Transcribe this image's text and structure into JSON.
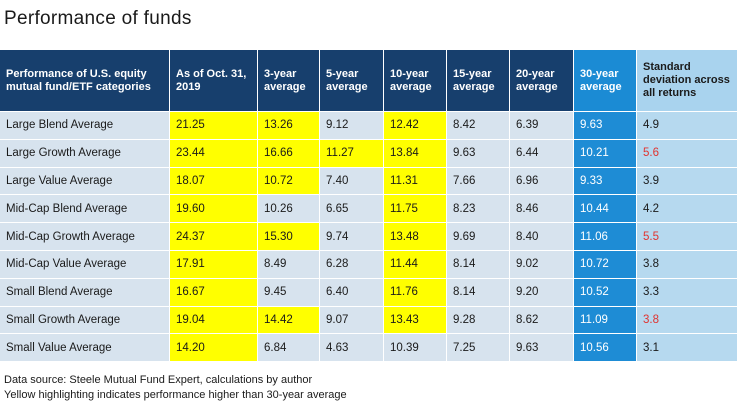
{
  "header": {
    "title": "Performance of funds"
  },
  "table": {
    "columns": [
      "Performance of U.S. equity mutual fund/ETF categories",
      "As of Oct. 31, 2019",
      "3-year average",
      "5-year average",
      "10-year average",
      "15-year average",
      "20-year average",
      "30-year average",
      "Standard deviation across all returns"
    ],
    "rows": [
      [
        "Large Blend Average",
        "21.25",
        "13.26",
        "9.12",
        "12.42",
        "8.42",
        "6.39",
        "9.63",
        "4.9"
      ],
      [
        "Large Growth Average",
        "23.44",
        "16.66",
        "11.27",
        "13.84",
        "9.63",
        "6.44",
        "10.21",
        "5.6"
      ],
      [
        "Large Value Average",
        "18.07",
        "10.72",
        "7.40",
        "11.31",
        "7.66",
        "6.96",
        "9.33",
        "3.9"
      ],
      [
        "Mid-Cap Blend Average",
        "19.60",
        "10.26",
        "6.65",
        "11.75",
        "8.23",
        "8.46",
        "10.44",
        "4.2"
      ],
      [
        "Mid-Cap Growth Average",
        "24.37",
        "15.30",
        "9.74",
        "13.48",
        "9.69",
        "8.40",
        "11.06",
        "5.5"
      ],
      [
        "Mid-Cap Value Average",
        "17.91",
        "8.49",
        "6.28",
        "11.44",
        "8.14",
        "9.02",
        "10.72",
        "3.8"
      ],
      [
        "Small Blend Average",
        "16.67",
        "9.45",
        "6.40",
        "11.76",
        "8.14",
        "9.20",
        "10.52",
        "3.3"
      ],
      [
        "Small Growth Average",
        "19.04",
        "14.42",
        "9.07",
        "13.43",
        "9.28",
        "8.62",
        "11.09",
        "3.8"
      ],
      [
        "Small Value Average",
        "14.20",
        "6.84",
        "4.63",
        "10.39",
        "7.25",
        "9.63",
        "10.56",
        "3.1"
      ]
    ],
    "std_dev_colors": [
      "#1a1a1a",
      "#e0332f",
      "#1a1a1a",
      "#1a1a1a",
      "#e0332f",
      "#1a1a1a",
      "#1a1a1a",
      "#e0332f",
      "#1a1a1a"
    ],
    "highlight_color": "#ffff00"
  },
  "footnotes": [
    "Data source:  Steele Mutual Fund Expert, calculations by author",
    "Yellow highlighting indicates performance higher than 30-year average"
  ]
}
